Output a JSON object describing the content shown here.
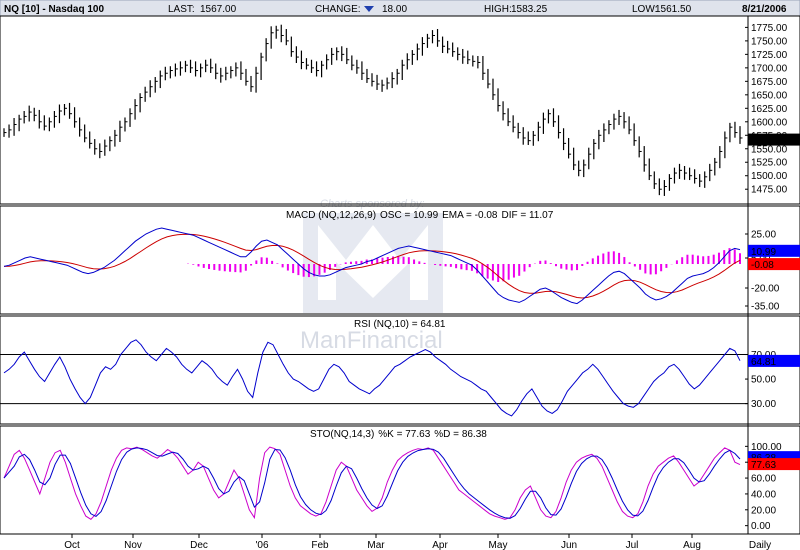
{
  "header": {
    "symbol": "NQ [10] - Nasdaq 100",
    "last_label": "LAST:",
    "last_value": "1567.00",
    "change_label": "CHANGE:",
    "change_value": "18.00",
    "high_label": "HIGH:",
    "high_value": "1583.25",
    "low_label": "LOW:",
    "low_value": "1561.50",
    "date": "8/21/2006"
  },
  "watermark": {
    "line1": "Charts sponsored by:",
    "line2": "ManFinancial"
  },
  "colors": {
    "bars": "#000000",
    "macd": "#0000cc",
    "ema": "#cc0000",
    "osc": "#ee00ee",
    "rsi": "#0000cc",
    "stok": "#cc00cc",
    "stod": "#0000cc",
    "header_bg": "#dfe3ec",
    "tag_blue": "#0000ff",
    "tag_red": "#ff0000"
  },
  "chart_data": [
    {
      "type": "ohlc",
      "title": "NQ [10] - Nasdaq 100",
      "x_tick_labels": [
        "Oct",
        "Nov",
        "Dec",
        "'06",
        "Feb",
        "Mar",
        "Apr",
        "May",
        "Jun",
        "Jul",
        "Aug",
        "Daily"
      ],
      "y_tick_labels": [
        "1775.00",
        "1750.00",
        "1725.00",
        "1700.00",
        "1675.00",
        "1650.00",
        "1625.00",
        "1600.00",
        "1575.00",
        "1550.00",
        "1525.00",
        "1500.00",
        "1475.00"
      ],
      "y_ticks": [
        1775,
        1750,
        1725,
        1700,
        1675,
        1650,
        1625,
        1600,
        1575,
        1550,
        1525,
        1500,
        1475
      ],
      "ylim": [
        1455,
        1785
      ],
      "last_tag": "1567.00",
      "closes": [
        1580,
        1585,
        1595,
        1605,
        1610,
        1618,
        1612,
        1600,
        1592,
        1600,
        1610,
        1620,
        1625,
        1615,
        1600,
        1585,
        1570,
        1560,
        1550,
        1545,
        1555,
        1565,
        1575,
        1590,
        1600,
        1615,
        1630,
        1645,
        1655,
        1665,
        1675,
        1685,
        1690,
        1695,
        1698,
        1700,
        1705,
        1700,
        1695,
        1700,
        1705,
        1700,
        1690,
        1685,
        1690,
        1695,
        1700,
        1690,
        1675,
        1665,
        1690,
        1720,
        1745,
        1765,
        1770,
        1760,
        1750,
        1730,
        1720,
        1710,
        1705,
        1700,
        1695,
        1705,
        1715,
        1725,
        1730,
        1725,
        1715,
        1705,
        1700,
        1690,
        1680,
        1675,
        1670,
        1668,
        1672,
        1680,
        1690,
        1705,
        1715,
        1725,
        1735,
        1745,
        1755,
        1760,
        1750,
        1740,
        1735,
        1730,
        1725,
        1720,
        1715,
        1712,
        1710,
        1690,
        1670,
        1650,
        1630,
        1615,
        1600,
        1590,
        1580,
        1570,
        1565,
        1575,
        1590,
        1605,
        1615,
        1600,
        1580,
        1560,
        1540,
        1520,
        1510,
        1520,
        1540,
        1560,
        1575,
        1585,
        1595,
        1605,
        1610,
        1600,
        1585,
        1565,
        1545,
        1520,
        1500,
        1485,
        1475,
        1480,
        1495,
        1505,
        1510,
        1505,
        1500,
        1495,
        1490,
        1498,
        1510,
        1525,
        1545,
        1570,
        1590,
        1580,
        1570
      ]
    },
    {
      "type": "line",
      "title": "MACD (NQ,12,26,9)",
      "osc_label": "OSC",
      "osc_value": "10.99",
      "ema_label": "EMA",
      "ema_value": "-0.08",
      "dif_label": "DIF",
      "dif_value": "11.07",
      "y_tick_labels": [
        "25.00",
        "5.00",
        "-20.00",
        "-35.00"
      ],
      "y_ticks": [
        25,
        5,
        -20,
        -35
      ],
      "ylim": [
        -40,
        35
      ],
      "tag_dif": "10.99",
      "tag_ema": "-0.08",
      "dif": [
        -2,
        -1,
        1,
        3,
        5,
        6,
        5,
        4,
        3,
        2,
        1,
        0,
        -1,
        -3,
        -5,
        -7,
        -8,
        -7,
        -5,
        -3,
        0,
        3,
        7,
        11,
        15,
        19,
        22,
        25,
        27,
        29,
        30,
        29,
        28,
        27,
        26,
        25,
        24,
        22,
        20,
        18,
        16,
        14,
        12,
        10,
        8,
        6,
        6,
        10,
        15,
        19,
        20,
        18,
        16,
        12,
        8,
        4,
        0,
        -4,
        -7,
        -9,
        -10,
        -10,
        -9,
        -7,
        -5,
        -3,
        -2,
        -1,
        0,
        2,
        3,
        5,
        7,
        9,
        11,
        13,
        14,
        15,
        14,
        13,
        12,
        11,
        10,
        9,
        8,
        7,
        5,
        3,
        1,
        -1,
        -5,
        -10,
        -15,
        -20,
        -25,
        -28,
        -30,
        -31,
        -32,
        -30,
        -27,
        -24,
        -21,
        -20,
        -22,
        -25,
        -28,
        -30,
        -32,
        -33,
        -30,
        -26,
        -22,
        -18,
        -14,
        -10,
        -7,
        -6,
        -8,
        -12,
        -16,
        -20,
        -25,
        -28,
        -30,
        -29,
        -27,
        -24,
        -20,
        -16,
        -12,
        -10,
        -9,
        -8,
        -6,
        -3,
        1,
        6,
        11,
        13,
        12
      ]
    },
    {
      "type": "line",
      "title": "RSI (NQ,10)",
      "value_label": "64.81",
      "y_tick_labels": [
        "70.00",
        "50.00",
        "30.00"
      ],
      "y_ticks": [
        70,
        50,
        30
      ],
      "ylim": [
        15,
        90
      ],
      "tag": "64.81",
      "rsi": [
        55,
        58,
        62,
        68,
        72,
        65,
        58,
        52,
        48,
        55,
        62,
        68,
        60,
        50,
        42,
        35,
        30,
        35,
        45,
        55,
        60,
        58,
        62,
        70,
        75,
        80,
        82,
        78,
        72,
        68,
        65,
        70,
        75,
        72,
        68,
        62,
        58,
        55,
        60,
        65,
        62,
        58,
        52,
        48,
        45,
        52,
        58,
        50,
        40,
        35,
        55,
        72,
        80,
        78,
        70,
        62,
        55,
        50,
        48,
        45,
        42,
        40,
        42,
        50,
        58,
        62,
        60,
        55,
        48,
        45,
        42,
        40,
        38,
        42,
        45,
        50,
        55,
        60,
        62,
        65,
        68,
        70,
        72,
        74,
        72,
        68,
        65,
        62,
        58,
        55,
        52,
        50,
        48,
        45,
        42,
        40,
        35,
        30,
        25,
        22,
        20,
        25,
        32,
        38,
        42,
        35,
        28,
        24,
        22,
        25,
        32,
        40,
        45,
        50,
        55,
        58,
        62,
        58,
        52,
        46,
        40,
        35,
        30,
        28,
        27,
        30,
        36,
        42,
        48,
        52,
        55,
        60,
        62,
        58,
        52,
        46,
        42,
        45,
        50,
        55,
        60,
        65,
        70,
        75,
        73,
        65
      ]
    },
    {
      "type": "line",
      "title": "STO(NQ,14,3)",
      "k_label": "%K",
      "k_value": "77.63",
      "d_label": "%D",
      "d_value": "86.38",
      "y_tick_labels": [
        "100.00",
        "80.00",
        "60.00",
        "40.00",
        "20.00",
        "0.00"
      ],
      "y_ticks": [
        100,
        80,
        60,
        40,
        20,
        0
      ],
      "ylim": [
        -8,
        108
      ],
      "tag_d": "86.38",
      "tag_k": "77.63",
      "k": [
        60,
        75,
        90,
        95,
        85,
        70,
        55,
        40,
        60,
        80,
        92,
        95,
        80,
        60,
        40,
        25,
        12,
        8,
        15,
        30,
        50,
        70,
        85,
        95,
        98,
        97,
        99,
        96,
        92,
        88,
        85,
        90,
        96,
        92,
        85,
        75,
        65,
        70,
        80,
        75,
        60,
        45,
        35,
        40,
        55,
        70,
        60,
        40,
        20,
        10,
        60,
        92,
        99,
        97,
        90,
        70,
        50,
        35,
        25,
        20,
        15,
        12,
        15,
        30,
        50,
        70,
        80,
        75,
        60,
        45,
        35,
        25,
        18,
        22,
        35,
        55,
        70,
        82,
        88,
        92,
        95,
        97,
        96,
        98,
        95,
        85,
        75,
        65,
        55,
        45,
        40,
        35,
        30,
        25,
        20,
        15,
        12,
        10,
        8,
        10,
        20,
        35,
        45,
        50,
        35,
        20,
        12,
        10,
        18,
        35,
        55,
        70,
        80,
        85,
        88,
        90,
        85,
        75,
        60,
        45,
        30,
        18,
        12,
        10,
        15,
        30,
        50,
        65,
        75,
        80,
        85,
        88,
        80,
        70,
        60,
        50,
        55,
        65,
        75,
        85,
        92,
        98,
        95,
        80,
        77
      ]
    }
  ]
}
